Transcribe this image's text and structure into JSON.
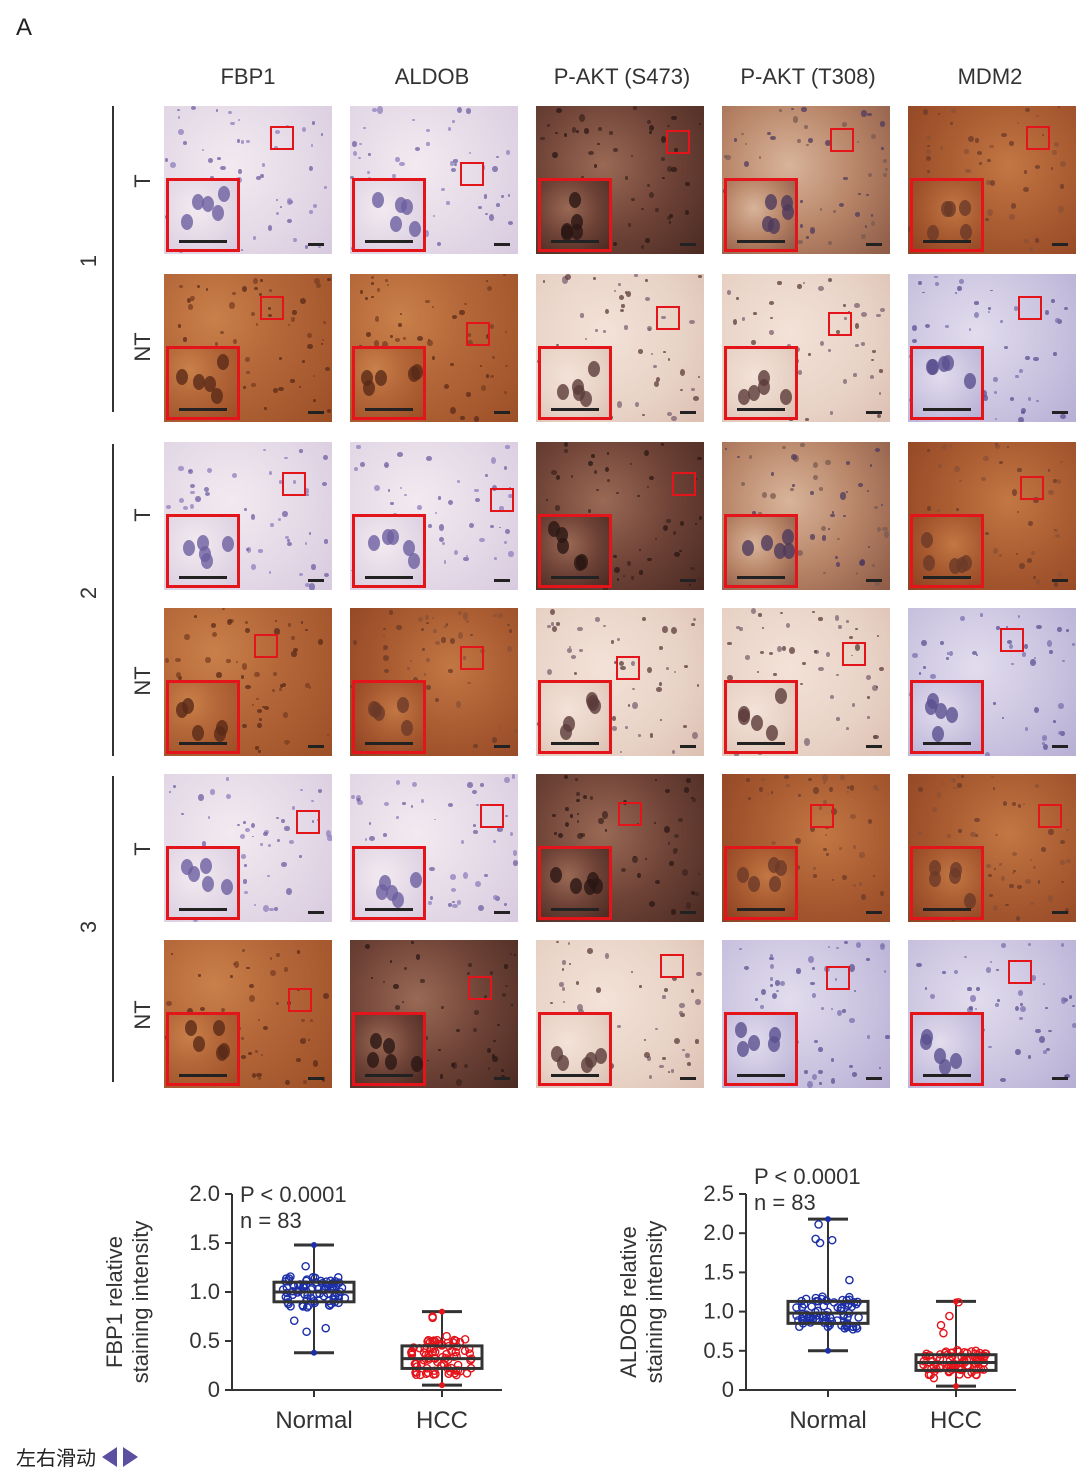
{
  "figure": {
    "panel_letter": "A",
    "columns": [
      "FBP1",
      "ALDOB",
      "P-AKT (S473)",
      "P-AKT (T308)",
      "MDM2"
    ],
    "groups": [
      {
        "label": "1",
        "rows": [
          {
            "label": "T",
            "stains": [
              "pale",
              "pale",
              "dark",
              "mixed",
              "brown2"
            ]
          },
          {
            "label": "NT",
            "stains": [
              "brown",
              "brown",
              "beige",
              "beige",
              "blue"
            ]
          }
        ]
      },
      {
        "label": "2",
        "rows": [
          {
            "label": "T",
            "stains": [
              "pale",
              "pale",
              "dark",
              "mixed",
              "brown2"
            ]
          },
          {
            "label": "NT",
            "stains": [
              "brown",
              "brown2",
              "beige",
              "beige",
              "blue"
            ]
          }
        ]
      },
      {
        "label": "3",
        "rows": [
          {
            "label": "T",
            "stains": [
              "pale",
              "pale",
              "dark",
              "brown2",
              "brown2"
            ]
          },
          {
            "label": "NT",
            "stains": [
              "brown",
              "dark",
              "beige",
              "blue",
              "blue"
            ]
          }
        ]
      }
    ]
  },
  "chart_data": [
    {
      "type": "scatter",
      "ylabel": "FBP1 relative staining intensity",
      "ylim": [
        0,
        2.0
      ],
      "yticks": [
        "0",
        "0.5",
        "1.0",
        "1.5",
        "2.0"
      ],
      "categories": [
        "Normal",
        "HCC"
      ],
      "stat_p": "P < 0.0001",
      "stat_n": "n = 83",
      "series": [
        {
          "name": "Normal",
          "color": "#1c2fa8",
          "min": 0.38,
          "q1": 0.9,
          "median": 1.0,
          "q3": 1.1,
          "max": 1.48
        },
        {
          "name": "HCC",
          "color": "#e4141b",
          "min": 0.05,
          "q1": 0.22,
          "median": 0.32,
          "q3": 0.45,
          "max": 0.8
        }
      ]
    },
    {
      "type": "scatter",
      "ylabel": "ALDOB relative staining intensity",
      "ylim": [
        0,
        2.5
      ],
      "yticks": [
        "0",
        "0.5",
        "1.0",
        "1.5",
        "2.0",
        "2.5"
      ],
      "categories": [
        "Normal",
        "HCC"
      ],
      "stat_p": "P < 0.0001",
      "stat_n": "n = 83",
      "series": [
        {
          "name": "Normal",
          "color": "#1c2fa8",
          "min": 0.5,
          "q1": 0.85,
          "median": 0.98,
          "q3": 1.13,
          "max": 2.18
        },
        {
          "name": "HCC",
          "color": "#e4141b",
          "min": 0.05,
          "q1": 0.25,
          "median": 0.35,
          "q3": 0.45,
          "max": 1.13
        }
      ]
    }
  ],
  "footer": {
    "text": "左右滑动"
  }
}
